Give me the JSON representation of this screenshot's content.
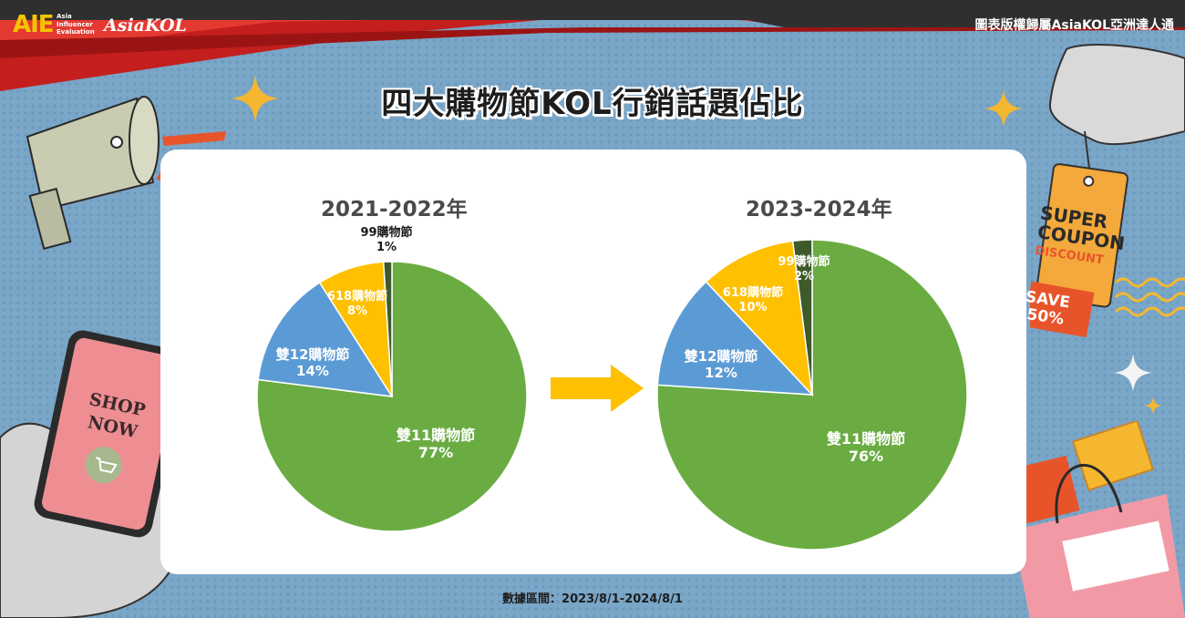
{
  "header": {
    "brand_short": "AIE",
    "brand_sub_lines": [
      "Asia",
      "Influencer",
      "Evaluation"
    ],
    "brand_name": "AsiaKOL",
    "copyright": "圖表版權歸屬AsiaKOL亞洲達人通"
  },
  "title": "四大購物節KOL行銷話題佔比",
  "footer": "數據區間：2023/8/1-2024/8/1",
  "decor": {
    "phone_line1": "SHOP",
    "phone_line2": "NOW",
    "coupon_line1": "SUPER",
    "coupon_line2": "COUPON",
    "coupon_line3": "DISCOUNT",
    "coupon_line4": "SAVE",
    "coupon_line5": "50%"
  },
  "colors": {
    "green": "#6aac42",
    "blue": "#5b9bd5",
    "yellow": "#ffc000",
    "dark_green": "#3d5a2a",
    "arrow": "#ffc000",
    "header_red": "#c41e1e"
  },
  "chart_data": [
    {
      "type": "pie",
      "title": "2021-2022年",
      "slices": [
        {
          "name": "雙11購物節",
          "value": 77,
          "label": "77%",
          "color": "#6aac42"
        },
        {
          "name": "雙12購物節",
          "value": 14,
          "label": "14%",
          "color": "#5b9bd5"
        },
        {
          "name": "618購物節",
          "value": 8,
          "label": "8%",
          "color": "#ffc000"
        },
        {
          "name": "99購物節",
          "value": 1,
          "label": "1%",
          "color": "#3d5a2a"
        }
      ]
    },
    {
      "type": "pie",
      "title": "2023-2024年",
      "slices": [
        {
          "name": "雙11購物節",
          "value": 76,
          "label": "76%",
          "color": "#6aac42"
        },
        {
          "name": "雙12購物節",
          "value": 12,
          "label": "12%",
          "color": "#5b9bd5"
        },
        {
          "name": "618購物節",
          "value": 10,
          "label": "10%",
          "color": "#ffc000"
        },
        {
          "name": "99購物節",
          "value": 2,
          "label": "2%",
          "color": "#3d5a2a"
        }
      ]
    }
  ]
}
